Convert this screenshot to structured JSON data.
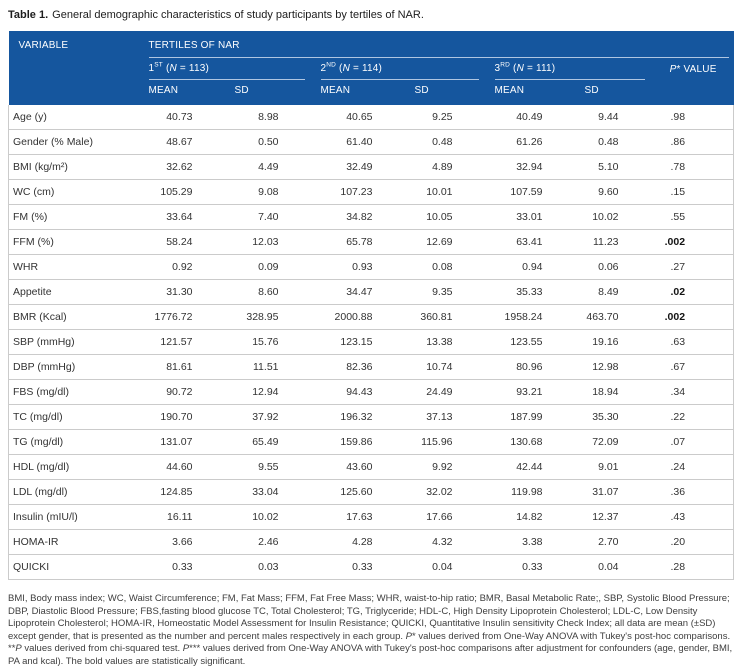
{
  "title": {
    "label": "Table 1.",
    "caption": "General demographic characteristics of study participants by tertiles of NAR."
  },
  "colors": {
    "header_bg": "#15569E",
    "header_rule": "#AFC6E2",
    "row_border": "#CBCBCB",
    "body_text": "#333333",
    "footnote_text": "#3E3E3E"
  },
  "table": {
    "header": {
      "variable": "VARIABLE",
      "tertiles_label": "TERTILES OF NAR",
      "groups": [
        {
          "ordinal": "1",
          "suffix": "ST",
          "paren_open": " (",
          "n_symbol": "N",
          "n_rest": " = 113)"
        },
        {
          "ordinal": "2",
          "suffix": "ND",
          "paren_open": " (",
          "n_symbol": "N",
          "n_rest": " = 114)"
        },
        {
          "ordinal": "3",
          "suffix": "RD",
          "paren_open": " (",
          "n_symbol": "N",
          "n_rest": " = 111)"
        }
      ],
      "p_value": {
        "p": "P",
        "star_rest": "* VALUE"
      },
      "mean_label": "MEAN",
      "sd_label": "SD"
    },
    "rows": [
      {
        "variable": "Age (y)",
        "values": [
          "40.73",
          "8.98",
          "40.65",
          "9.25",
          "40.49",
          "9.44"
        ],
        "p": ".98",
        "p_bold": false
      },
      {
        "variable": "Gender (% Male)",
        "values": [
          "48.67",
          "0.50",
          "61.40",
          "0.48",
          "61.26",
          "0.48"
        ],
        "p": ".86",
        "p_bold": false
      },
      {
        "variable": "BMI (kg/m²)",
        "values": [
          "32.62",
          "4.49",
          "32.49",
          "4.89",
          "32.94",
          "5.10"
        ],
        "p": ".78",
        "p_bold": false
      },
      {
        "variable": "WC (cm)",
        "values": [
          "105.29",
          "9.08",
          "107.23",
          "10.01",
          "107.59",
          "9.60"
        ],
        "p": ".15",
        "p_bold": false
      },
      {
        "variable": "FM (%)",
        "values": [
          "33.64",
          "7.40",
          "34.82",
          "10.05",
          "33.01",
          "10.02"
        ],
        "p": ".55",
        "p_bold": false
      },
      {
        "variable": "FFM (%)",
        "values": [
          "58.24",
          "12.03",
          "65.78",
          "12.69",
          "63.41",
          "11.23"
        ],
        "p": ".002",
        "p_bold": true
      },
      {
        "variable": "WHR",
        "values": [
          "0.92",
          "0.09",
          "0.93",
          "0.08",
          "0.94",
          "0.06"
        ],
        "p": ".27",
        "p_bold": false
      },
      {
        "variable": "Appetite",
        "values": [
          "31.30",
          "8.60",
          "34.47",
          "9.35",
          "35.33",
          "8.49"
        ],
        "p": ".02",
        "p_bold": true
      },
      {
        "variable": "BMR (Kcal)",
        "values": [
          "1776.72",
          "328.95",
          "2000.88",
          "360.81",
          "1958.24",
          "463.70"
        ],
        "p": ".002",
        "p_bold": true
      },
      {
        "variable": "SBP (mmHg)",
        "values": [
          "121.57",
          "15.76",
          "123.15",
          "13.38",
          "123.55",
          "19.16"
        ],
        "p": ".63",
        "p_bold": false
      },
      {
        "variable": "DBP (mmHg)",
        "values": [
          "81.61",
          "11.51",
          "82.36",
          "10.74",
          "80.96",
          "12.98"
        ],
        "p": ".67",
        "p_bold": false
      },
      {
        "variable": "FBS (mg/dl)",
        "values": [
          "90.72",
          "12.94",
          "94.43",
          "24.49",
          "93.21",
          "18.94"
        ],
        "p": ".34",
        "p_bold": false
      },
      {
        "variable": "TC (mg/dl)",
        "values": [
          "190.70",
          "37.92",
          "196.32",
          "37.13",
          "187.99",
          "35.30"
        ],
        "p": ".22",
        "p_bold": false
      },
      {
        "variable": "TG (mg/dl)",
        "values": [
          "131.07",
          "65.49",
          "159.86",
          "115.96",
          "130.68",
          "72.09"
        ],
        "p": ".07",
        "p_bold": false
      },
      {
        "variable": "HDL (mg/dl)",
        "values": [
          "44.60",
          "9.55",
          "43.60",
          "9.92",
          "42.44",
          "9.01"
        ],
        "p": ".24",
        "p_bold": false
      },
      {
        "variable": "LDL (mg/dl)",
        "values": [
          "124.85",
          "33.04",
          "125.60",
          "32.02",
          "119.98",
          "31.07"
        ],
        "p": ".36",
        "p_bold": false
      },
      {
        "variable": "Insulin (mIU/l)",
        "values": [
          "16.11",
          "10.02",
          "17.63",
          "17.66",
          "14.82",
          "12.37"
        ],
        "p": ".43",
        "p_bold": false
      },
      {
        "variable": "HOMA-IR",
        "values": [
          "3.66",
          "2.46",
          "4.28",
          "4.32",
          "3.38",
          "2.70"
        ],
        "p": ".20",
        "p_bold": false
      },
      {
        "variable": "QUICKI",
        "values": [
          "0.33",
          "0.03",
          "0.33",
          "0.04",
          "0.33",
          "0.04"
        ],
        "p": ".28",
        "p_bold": false
      }
    ]
  },
  "footnote": {
    "segments": [
      {
        "text": "BMI, Body mass index; WC, Waist Circumference; FM, Fat Mass; FFM, Fat Free Mass; WHR, waist-to-hip ratio; BMR, Basal Metabolic Rate;, SBP, Systolic Blood Pressure; DBP, Diastolic Blood Pressure; FBS,fasting blood glucose TC, Total Cholesterol; TG, Triglyceride; HDL-C, High Density Lipoprotein Cholesterol; LDL-C, Low Density Lipoprotein Cholesterol; HOMA-IR, Homeostatic Model Assessment for Insulin Resistance; QUICKI, Quantitative Insulin sensitivity Check Index; all data are mean (±SD) except gender, that is presented as the number and percent males respectively in each group. ",
        "italic": false
      },
      {
        "text": "P",
        "italic": true
      },
      {
        "text": "* values derived from One-Way ANOVA with Tukey's post-hoc comparisons. **",
        "italic": false
      },
      {
        "text": "P",
        "italic": true
      },
      {
        "text": " values derived from chi-squared test. ",
        "italic": false
      },
      {
        "text": "P",
        "italic": true
      },
      {
        "text": "*** values derived from One-Way ANOVA with Tukey's post-hoc comparisons after adjustment for confounders (age, gender, BMI, PA and kcal). The bold values are statistically significant.",
        "italic": false
      }
    ]
  }
}
